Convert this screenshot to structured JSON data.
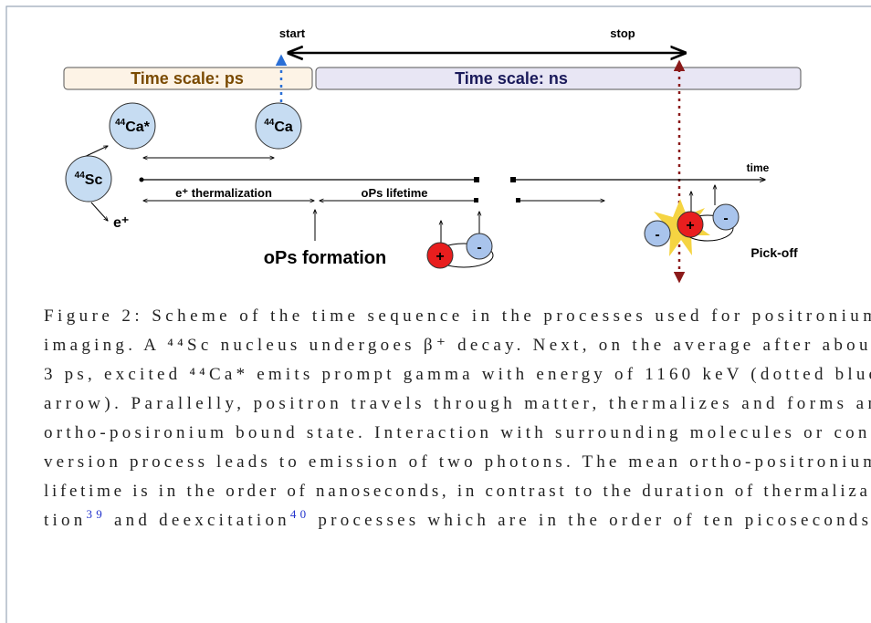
{
  "diagram": {
    "start": "start",
    "stop": "stop",
    "scale_ps": "Time scale: ps",
    "scale_ns": "Time scale: ns",
    "nuclei": [
      {
        "mass": "44",
        "symbol": "Ca*"
      },
      {
        "mass": "44",
        "symbol": "Ca"
      },
      {
        "mass": "44",
        "symbol": "Sc"
      }
    ],
    "positron": "e⁺",
    "thermalization": "e⁺ thermalization",
    "ops_lifetime": "oPs lifetime",
    "time": "time",
    "ops_formation": "oPs formation",
    "plus": "+",
    "minus": "-",
    "pickoff": "Pick-off"
  },
  "caption": {
    "lines": [
      "Figure 2: Scheme of the time sequence in the processes used for positronium",
      "imaging. A ⁴⁴Sc nucleus undergoes β⁺ decay. Next, on the average after about",
      "3 ps, excited ⁴⁴Ca* emits prompt gamma with energy of 1160 keV (dotted blue",
      "arrow). Parallelly, positron travels through matter, thermalizes and forms an",
      "ortho-posironium bound state. Interaction with surrounding molecules or con-",
      "version process leads to emission of two photons. The mean ortho-positronium",
      "lifetime is in the order of nanoseconds, in contrast to the duration of thermaliza-"
    ],
    "last_line": [
      "tion",
      "39",
      " and deexcitation",
      "40",
      " processes which are in the order of ten picoseconds."
    ]
  }
}
